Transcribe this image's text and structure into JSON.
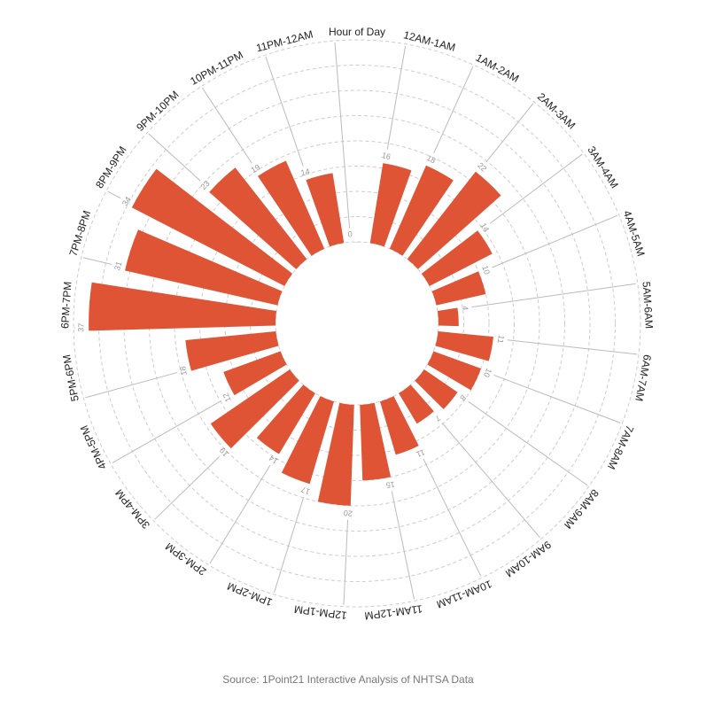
{
  "chart_data": {
    "type": "radial_bar",
    "categories": [
      "Hour of Day",
      "12AM-1AM",
      "1AM-2AM",
      "2AM-3AM",
      "3AM-4AM",
      "4AM-5AM",
      "5AM-6AM",
      "6AM-7AM",
      "7AM-8AM",
      "8AM-9AM",
      "9AM-10AM",
      "10AM-11AM",
      "11AM-12PM",
      "12PM-1PM",
      "1PM-2PM",
      "2PM-3PM",
      "3PM-4PM",
      "4PM-5PM",
      "5PM-6PM",
      "6PM-7PM",
      "7PM-8PM",
      "8PM-9PM",
      "9PM-10PM",
      "10PM-11PM",
      "11PM-12AM"
    ],
    "values": [
      0,
      16,
      18,
      22,
      14,
      10,
      4,
      11,
      10,
      8,
      7,
      11,
      15,
      20,
      17,
      14,
      19,
      12,
      18,
      37,
      31,
      34,
      23,
      19,
      14
    ],
    "color": "#e05436",
    "ylim": [
      0,
      40
    ],
    "yticks": [
      0,
      5,
      10,
      15,
      20,
      25,
      30,
      35,
      40
    ],
    "grid": true,
    "source": "Source: 1Point21 Interactive Analysis of NHTSA Data"
  }
}
